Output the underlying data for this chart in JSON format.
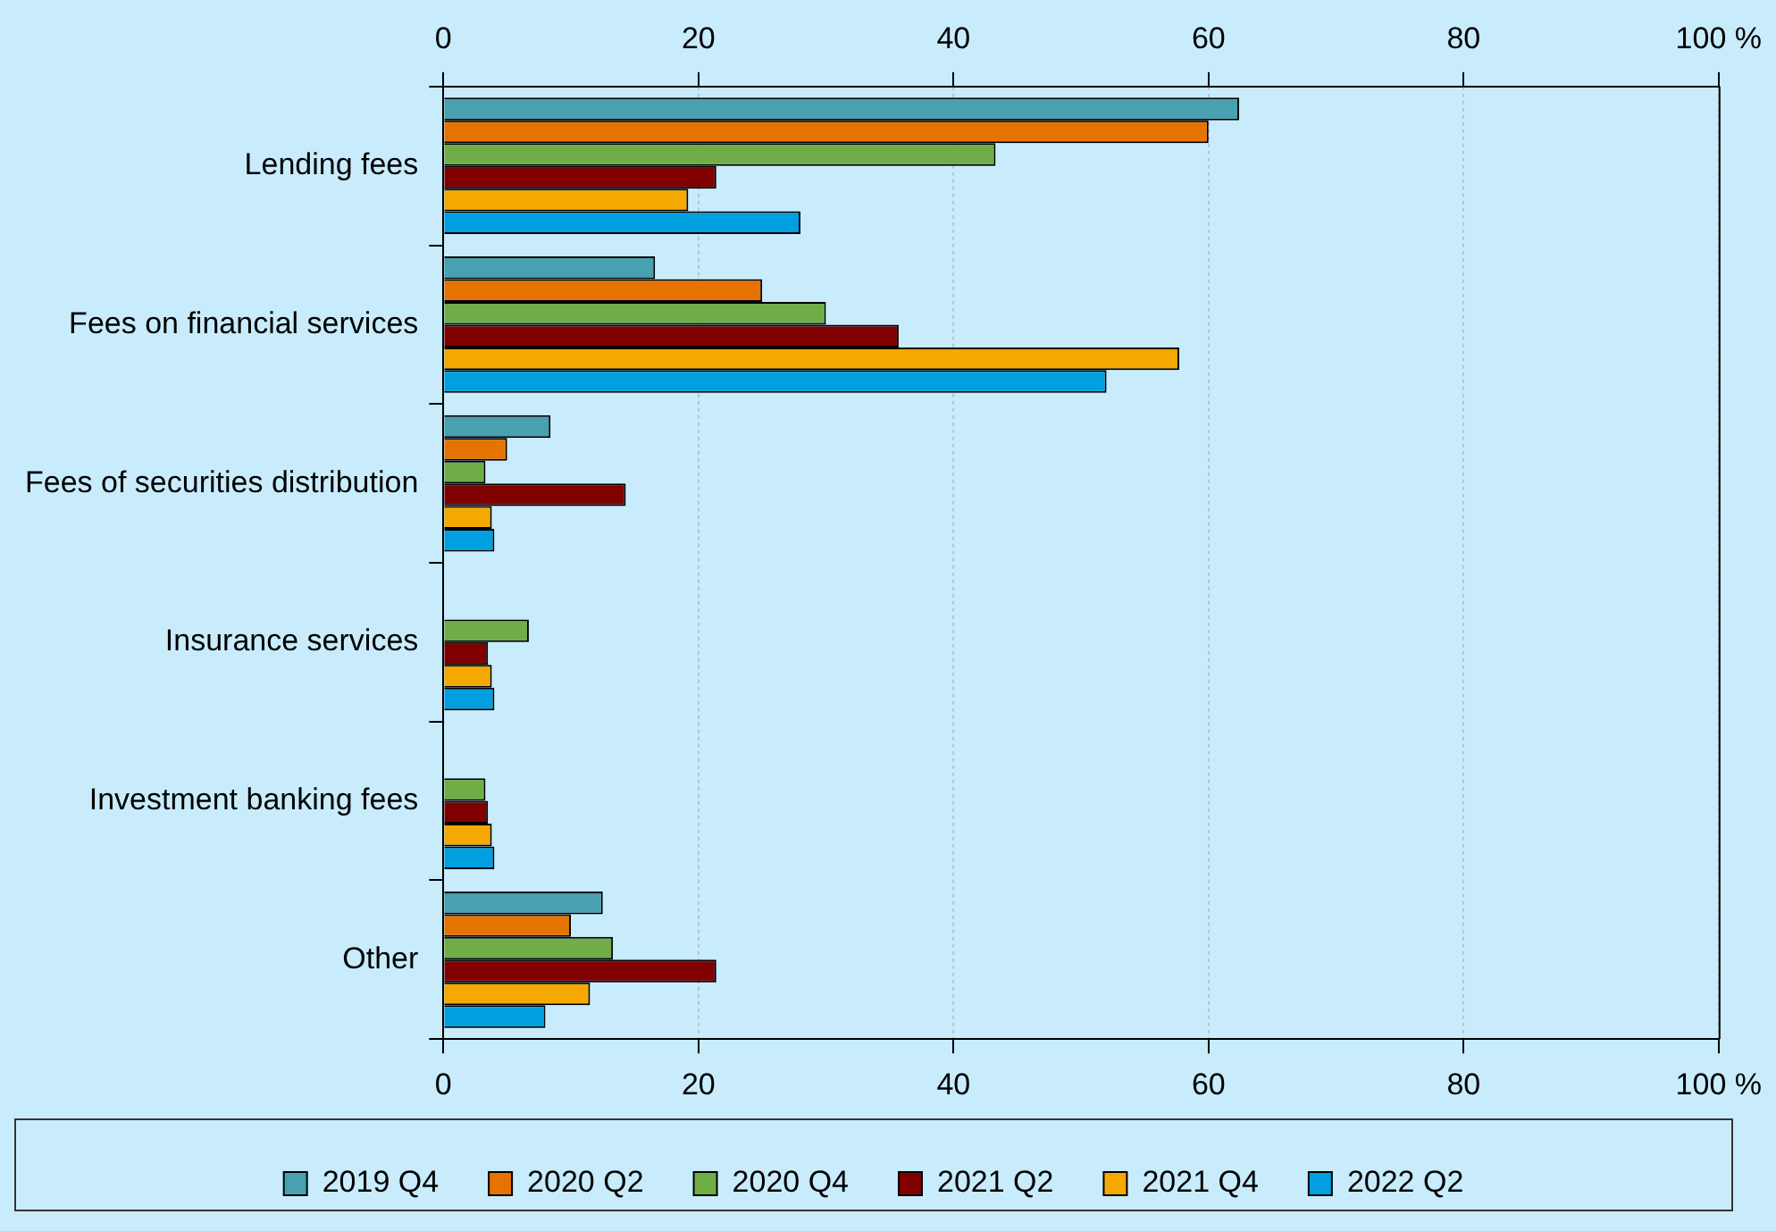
{
  "chart_data": {
    "type": "bar",
    "orientation": "horizontal",
    "categories": [
      "Lending fees",
      "Fees on financial services",
      "Fees of securities distribution",
      "Insurance services",
      "Investment banking fees",
      "Other"
    ],
    "series": [
      {
        "name": "2019 Q4",
        "color": "#48a0b0",
        "values": [
          62.4,
          16.6,
          8.4,
          null,
          null,
          12.5
        ]
      },
      {
        "name": "2020 Q2",
        "color": "#e67300",
        "values": [
          60.0,
          25.0,
          5.0,
          null,
          null,
          10.0
        ]
      },
      {
        "name": "2020 Q4",
        "color": "#70ad47",
        "values": [
          43.3,
          30.0,
          3.3,
          6.7,
          3.3,
          13.3
        ]
      },
      {
        "name": "2021 Q2",
        "color": "#800000",
        "values": [
          21.4,
          35.7,
          14.3,
          3.5,
          3.5,
          21.4
        ]
      },
      {
        "name": "2021 Q4",
        "color": "#f5a800",
        "values": [
          19.2,
          57.7,
          3.8,
          3.8,
          3.8,
          11.5
        ]
      },
      {
        "name": "2022 Q2",
        "color": "#00a0e0",
        "values": [
          28.0,
          52.0,
          4.0,
          4.0,
          4.0,
          8.0
        ]
      }
    ],
    "xlim": [
      0,
      100
    ],
    "xticks": [
      0,
      20,
      40,
      60,
      80,
      {
        "value": 100,
        "label": "100 %"
      }
    ],
    "x2lim": [
      0,
      100
    ],
    "x2ticks": [
      0,
      20,
      40,
      60,
      80,
      {
        "value": 100,
        "label": "100 %"
      }
    ],
    "grid": "x",
    "legend": "bottom"
  }
}
